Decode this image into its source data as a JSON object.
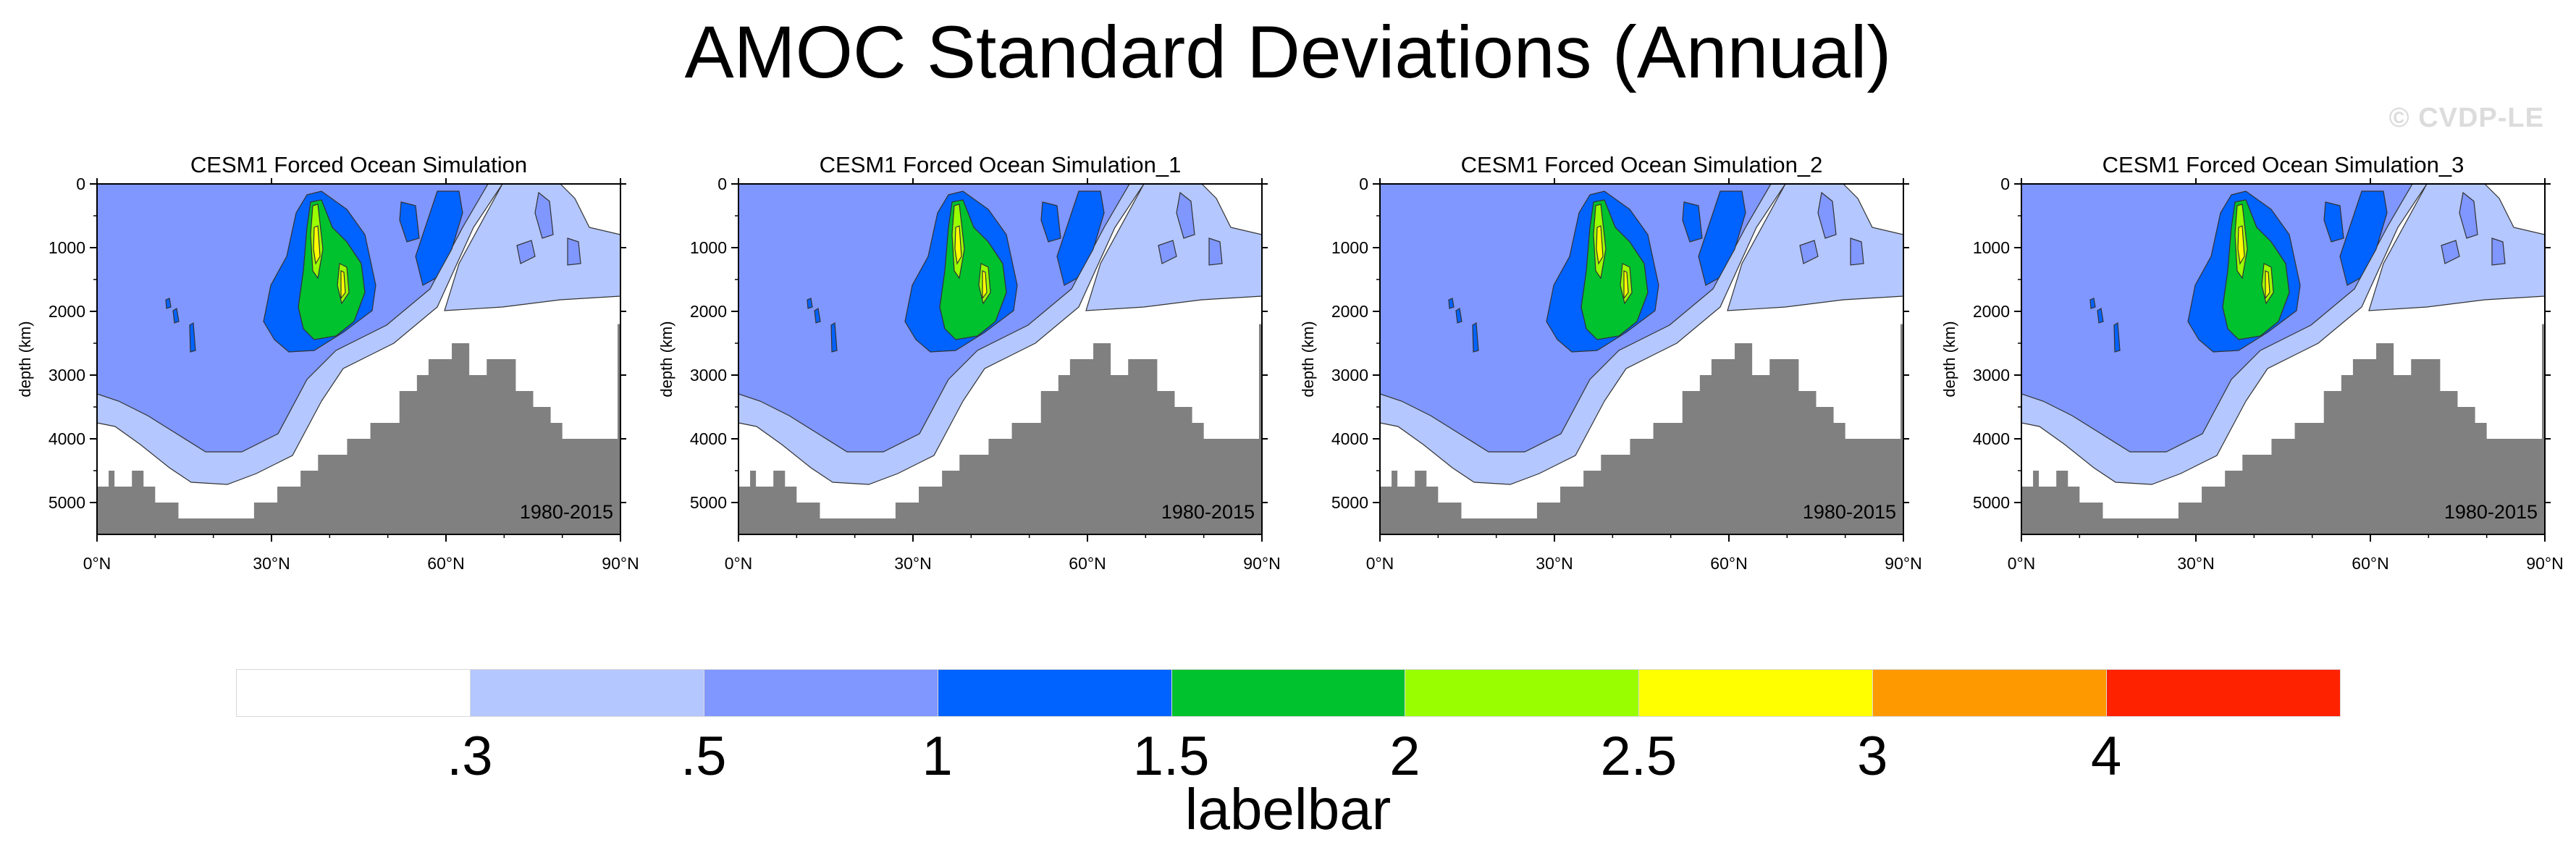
{
  "title": "AMOC Standard Deviations (Annual)",
  "watermark": "© CVDP-LE",
  "colors": {
    "levels": [
      "#ffffff",
      "#b4c7ff",
      "#7f97ff",
      "#0062ff",
      "#00c12e",
      "#99ff00",
      "#ffff00",
      "#ff9900",
      "#ff2200"
    ],
    "land": "#808080",
    "outline": "#333333"
  },
  "chart_data": [
    {
      "type": "contour",
      "title": "CESM1 Forced Ocean Simulation",
      "ylabel": "depth (km)",
      "x_ticks": [
        "0°N",
        "30°N",
        "60°N",
        "90°N"
      ],
      "x_values": [
        0,
        30,
        60,
        90
      ],
      "y_ticks": [
        "0",
        "1000",
        "2000",
        "3000",
        "4000",
        "5000"
      ],
      "y_values": [
        0,
        1000,
        2000,
        3000,
        4000,
        5000
      ],
      "xlim": [
        0,
        90
      ],
      "ylim": [
        5500,
        0
      ],
      "period": "1980-2015"
    },
    {
      "type": "contour",
      "title": "CESM1 Forced Ocean Simulation_1",
      "ylabel": "depth (km)",
      "x_ticks": [
        "0°N",
        "30°N",
        "60°N",
        "90°N"
      ],
      "x_values": [
        0,
        30,
        60,
        90
      ],
      "y_ticks": [
        "0",
        "1000",
        "2000",
        "3000",
        "4000",
        "5000"
      ],
      "y_values": [
        0,
        1000,
        2000,
        3000,
        4000,
        5000
      ],
      "xlim": [
        0,
        90
      ],
      "ylim": [
        5500,
        0
      ],
      "period": "1980-2015"
    },
    {
      "type": "contour",
      "title": "CESM1 Forced Ocean Simulation_2",
      "ylabel": "depth (km)",
      "x_ticks": [
        "0°N",
        "30°N",
        "60°N",
        "90°N"
      ],
      "x_values": [
        0,
        30,
        60,
        90
      ],
      "y_ticks": [
        "0",
        "1000",
        "2000",
        "3000",
        "4000",
        "5000"
      ],
      "y_values": [
        0,
        1000,
        2000,
        3000,
        4000,
        5000
      ],
      "xlim": [
        0,
        90
      ],
      "ylim": [
        5500,
        0
      ],
      "period": "1980-2015"
    },
    {
      "type": "contour",
      "title": "CESM1 Forced Ocean Simulation_3",
      "ylabel": "depth (km)",
      "x_ticks": [
        "0°N",
        "30°N",
        "60°N",
        "90°N"
      ],
      "x_values": [
        0,
        30,
        60,
        90
      ],
      "y_ticks": [
        "0",
        "1000",
        "2000",
        "3000",
        "4000",
        "5000"
      ],
      "y_values": [
        0,
        1000,
        2000,
        3000,
        4000,
        5000
      ],
      "xlim": [
        0,
        90
      ],
      "ylim": [
        5500,
        0
      ],
      "period": "1980-2015"
    }
  ],
  "labelbar": {
    "title": "labelbar",
    "labels": [
      ".3",
      ".5",
      "1",
      "1.5",
      "2",
      "2.5",
      "3",
      "4"
    ]
  }
}
